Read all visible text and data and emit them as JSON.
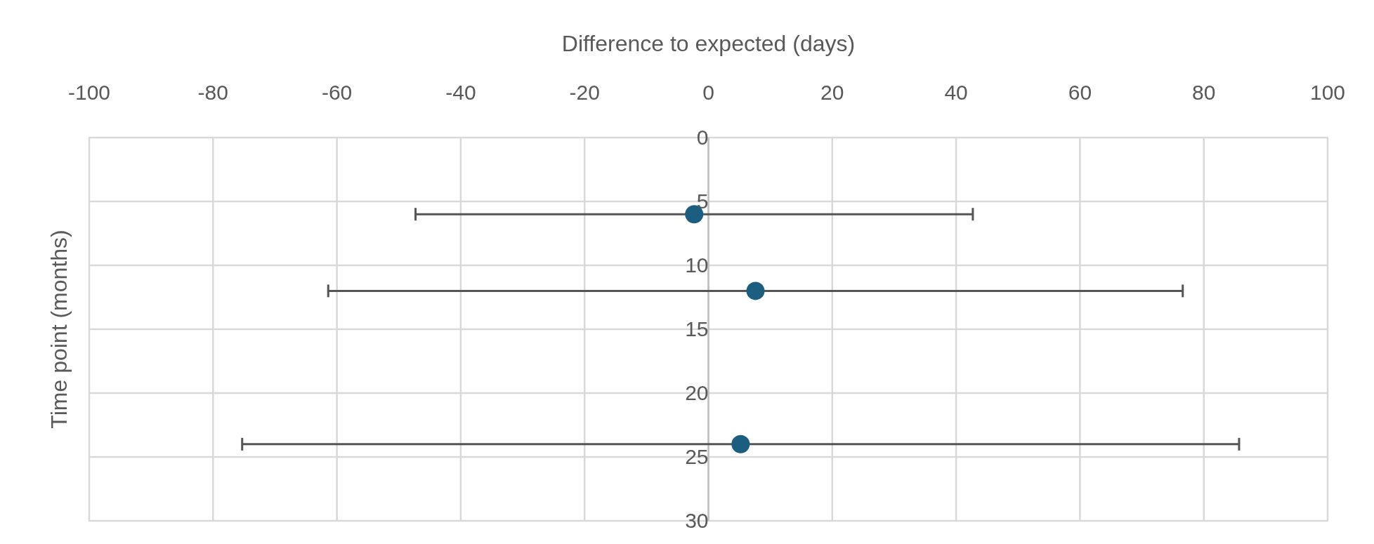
{
  "chart_data": {
    "type": "scatter",
    "xlabel": "Difference to expected (days)",
    "ylabel": "Time point (months)",
    "x": [
      -2.3,
      7.6,
      5.2
    ],
    "values": [
      6,
      12,
      24
    ],
    "xerrors": [
      45,
      69,
      80.5
    ],
    "color": "#1b5e80",
    "xlim": [
      -100,
      100
    ],
    "xticks": [
      -100,
      -80,
      -60,
      -40,
      -20,
      0,
      20,
      40,
      60,
      80,
      100
    ],
    "ylim": [
      30,
      0
    ],
    "yticks": [
      0,
      5,
      10,
      15,
      20,
      25,
      30
    ],
    "grid": true,
    "marker": "circle"
  }
}
